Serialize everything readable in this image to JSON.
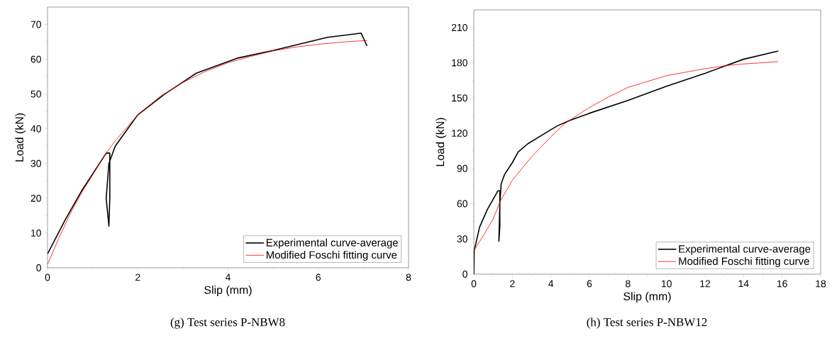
{
  "chart_data": [
    {
      "type": "line",
      "xlabel": "Slip (mm)",
      "ylabel": "Load (kN)",
      "xlim": [
        0,
        8
      ],
      "ylim": [
        0,
        75
      ],
      "xticks": [
        0,
        2,
        4,
        6,
        8
      ],
      "yticks": [
        0,
        10,
        20,
        30,
        40,
        50,
        60,
        70
      ],
      "legend": "bottom right",
      "annotations": [
        "(g) Test series P-NBW8"
      ],
      "series": [
        {
          "name": "Experimental curve-average",
          "color": "#000000",
          "x": [
            0,
            0.4,
            0.75,
            1.05,
            1.3,
            1.38,
            1.38,
            1.36,
            1.3,
            1.36,
            1.5,
            2,
            2.6,
            3.3,
            4.2,
            5,
            6.2,
            6.95,
            7.08
          ],
          "values": [
            4,
            14,
            22,
            28,
            33,
            33,
            20,
            12,
            20,
            30,
            35,
            44,
            50,
            56,
            60.3,
            62.5,
            66.3,
            67.5,
            63.8
          ]
        },
        {
          "name": "Modified Foschi fitting curve",
          "color": "#ff0000",
          "x": [
            0,
            0.25,
            0.5,
            0.75,
            1.3,
            1.5,
            2,
            2.5,
            3,
            3.5,
            4,
            4.5,
            5,
            5.5,
            6,
            6.5,
            7.08
          ],
          "values": [
            1,
            8.5,
            15.5,
            21.5,
            33,
            36.5,
            44,
            49.3,
            53.3,
            56.5,
            59,
            60.8,
            62.4,
            63.5,
            64.3,
            64.9,
            65.4
          ]
        }
      ]
    },
    {
      "type": "line",
      "xlabel": "Slip (mm)",
      "ylabel": "Load (kN)",
      "xlim": [
        0,
        18
      ],
      "ylim": [
        0,
        225
      ],
      "xticks": [
        0,
        2,
        4,
        6,
        8,
        10,
        12,
        14,
        16,
        18
      ],
      "yticks": [
        0,
        30,
        60,
        90,
        120,
        150,
        180,
        210
      ],
      "legend": "bottom right",
      "annotations": [
        "(h) Test series P-NBW12"
      ],
      "series": [
        {
          "name": "Experimental curve-average",
          "color": "#000000",
          "x": [
            0,
            0.02,
            0.3,
            0.7,
            1.25,
            1.35,
            1.35,
            1.3,
            1.35,
            1.42,
            1.6,
            2,
            2.3,
            2.8,
            3.5,
            4.3,
            5,
            6,
            8,
            10,
            12,
            14,
            15.8
          ],
          "values": [
            0,
            20,
            40,
            55,
            71,
            71,
            40,
            28,
            60,
            77,
            85,
            95,
            104,
            111,
            118,
            126,
            131,
            137,
            148,
            160,
            171,
            183,
            190
          ]
        },
        {
          "name": "Modified Foschi fitting curve",
          "color": "#ff0000",
          "x": [
            0,
            0.5,
            1,
            1.4,
            2,
            3,
            4,
            4.7,
            6,
            7,
            8,
            10,
            12,
            13.3,
            14,
            15.8
          ],
          "values": [
            20,
            33,
            47,
            63,
            80,
            100,
            117,
            128,
            142,
            151,
            159,
            169,
            175,
            178,
            179,
            181
          ]
        }
      ]
    }
  ]
}
